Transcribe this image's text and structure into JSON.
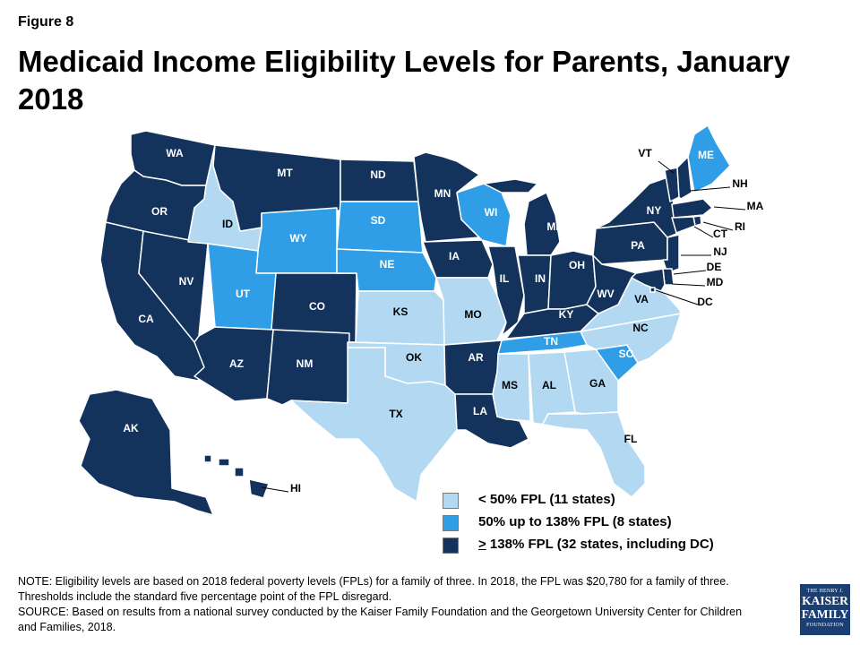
{
  "figure_label": "Figure 8",
  "title": "Medicaid Income Eligibility Levels for Parents, January 2018",
  "colors": {
    "low": "#b3d9f2",
    "mid": "#2f9ee6",
    "high": "#13325c",
    "border": "#ffffff",
    "label_dark": "#ffffff",
    "label_light": "#000000"
  },
  "legend": [
    {
      "key": "low",
      "text": "< 50% FPL (11 states)"
    },
    {
      "key": "mid",
      "text": "50% up to 138% FPL (8 states)"
    },
    {
      "key": "high",
      "symbol": ">",
      "text": " 138% FPL (32 states, including DC)"
    }
  ],
  "states": [
    {
      "id": "WA",
      "category": "high"
    },
    {
      "id": "OR",
      "category": "high"
    },
    {
      "id": "CA",
      "category": "high"
    },
    {
      "id": "NV",
      "category": "high"
    },
    {
      "id": "ID",
      "category": "low"
    },
    {
      "id": "MT",
      "category": "high"
    },
    {
      "id": "WY",
      "category": "mid"
    },
    {
      "id": "UT",
      "category": "mid"
    },
    {
      "id": "CO",
      "category": "high"
    },
    {
      "id": "AZ",
      "category": "high"
    },
    {
      "id": "NM",
      "category": "high"
    },
    {
      "id": "ND",
      "category": "high"
    },
    {
      "id": "SD",
      "category": "mid"
    },
    {
      "id": "NE",
      "category": "mid"
    },
    {
      "id": "KS",
      "category": "low"
    },
    {
      "id": "OK",
      "category": "low"
    },
    {
      "id": "TX",
      "category": "low"
    },
    {
      "id": "MN",
      "category": "high"
    },
    {
      "id": "IA",
      "category": "high"
    },
    {
      "id": "MO",
      "category": "low"
    },
    {
      "id": "AR",
      "category": "high"
    },
    {
      "id": "LA",
      "category": "high"
    },
    {
      "id": "WI",
      "category": "mid"
    },
    {
      "id": "IL",
      "category": "high"
    },
    {
      "id": "MI",
      "category": "high"
    },
    {
      "id": "IN",
      "category": "high"
    },
    {
      "id": "OH",
      "category": "high"
    },
    {
      "id": "KY",
      "category": "high"
    },
    {
      "id": "TN",
      "category": "mid"
    },
    {
      "id": "MS",
      "category": "low"
    },
    {
      "id": "AL",
      "category": "low"
    },
    {
      "id": "GA",
      "category": "low"
    },
    {
      "id": "FL",
      "category": "low"
    },
    {
      "id": "SC",
      "category": "mid"
    },
    {
      "id": "NC",
      "category": "low"
    },
    {
      "id": "VA",
      "category": "low"
    },
    {
      "id": "WV",
      "category": "high"
    },
    {
      "id": "PA",
      "category": "high"
    },
    {
      "id": "NY",
      "category": "high"
    },
    {
      "id": "VT",
      "category": "high"
    },
    {
      "id": "NH",
      "category": "high"
    },
    {
      "id": "ME",
      "category": "mid"
    },
    {
      "id": "MA",
      "category": "high"
    },
    {
      "id": "RI",
      "category": "high"
    },
    {
      "id": "CT",
      "category": "high"
    },
    {
      "id": "NJ",
      "category": "high"
    },
    {
      "id": "DE",
      "category": "high"
    },
    {
      "id": "MD",
      "category": "high"
    },
    {
      "id": "DC",
      "category": "high"
    },
    {
      "id": "AK",
      "category": "high"
    },
    {
      "id": "HI",
      "category": "high"
    }
  ],
  "note": "NOTE: Eligibility levels are based on 2018 federal poverty levels (FPLs) for a family of three. In 2018, the FPL was $20,780 for a family of three. Thresholds include the standard five percentage point of the FPL disregard.",
  "source": "SOURCE: Based on results from a national survey conducted by the Kaiser Family Foundation and the Georgetown University Center for Children and Families, 2018.",
  "logo": {
    "line1": "THE HENRY J.",
    "line2": "KAISER",
    "line3": "FAMILY",
    "line4": "FOUNDATION"
  }
}
